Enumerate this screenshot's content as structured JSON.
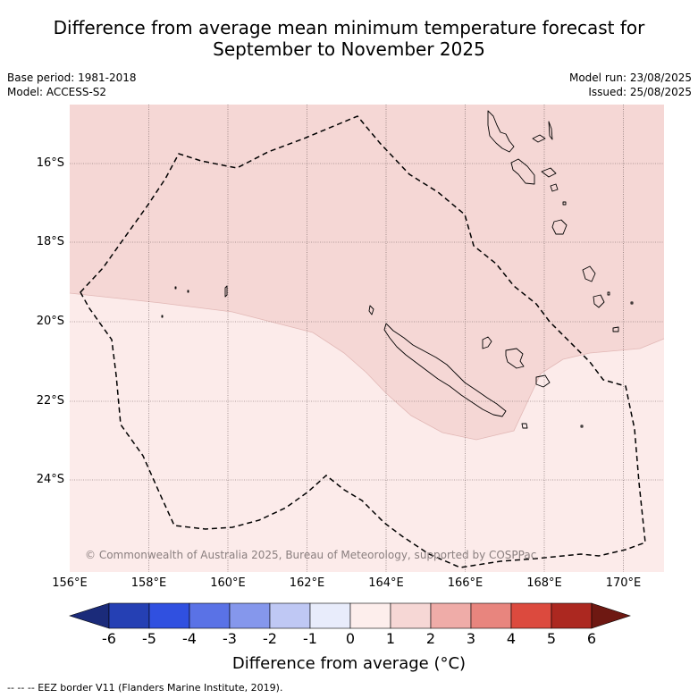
{
  "title_line1": "Difference from average mean minimum temperature forecast for",
  "title_line2": "September to November 2025",
  "base_period": "Base period: 1981-2018",
  "model": "Model: ACCESS-S2",
  "model_run": "Model run: 23/08/2025",
  "issued": "Issued: 25/08/2025",
  "lat_labels": [
    "16°S",
    "18°S",
    "20°S",
    "22°S",
    "24°S"
  ],
  "lon_labels": [
    "156°E",
    "158°E",
    "160°E",
    "162°E",
    "164°E",
    "166°E",
    "168°E",
    "170°E"
  ],
  "copyright": "© Commonwealth of Australia 2025, Bureau of Meteorology, supported by COSPPac",
  "colorbar": {
    "ticks": [
      "-6",
      "-5",
      "-4",
      "-3",
      "-2",
      "-1",
      "0",
      "1",
      "2",
      "3",
      "4",
      "5",
      "6"
    ],
    "title": "Difference from average (°C)",
    "colors": [
      "#1b2b7a",
      "#2540b4",
      "#3050e0",
      "#5a72e6",
      "#8597ec",
      "#bfc8f4",
      "#e8ecfb",
      "#fdeeec",
      "#f6d7d5",
      "#efaca8",
      "#e8857e",
      "#dc4a3e",
      "#ac2820",
      "#6e1812"
    ]
  },
  "legend_text": "--  --  -- EEZ border V11 (Flanders Marine Institute, 2019).",
  "map_colors": {
    "band_0_1": "#fcebea",
    "band_1_2": "#f5d7d5"
  }
}
